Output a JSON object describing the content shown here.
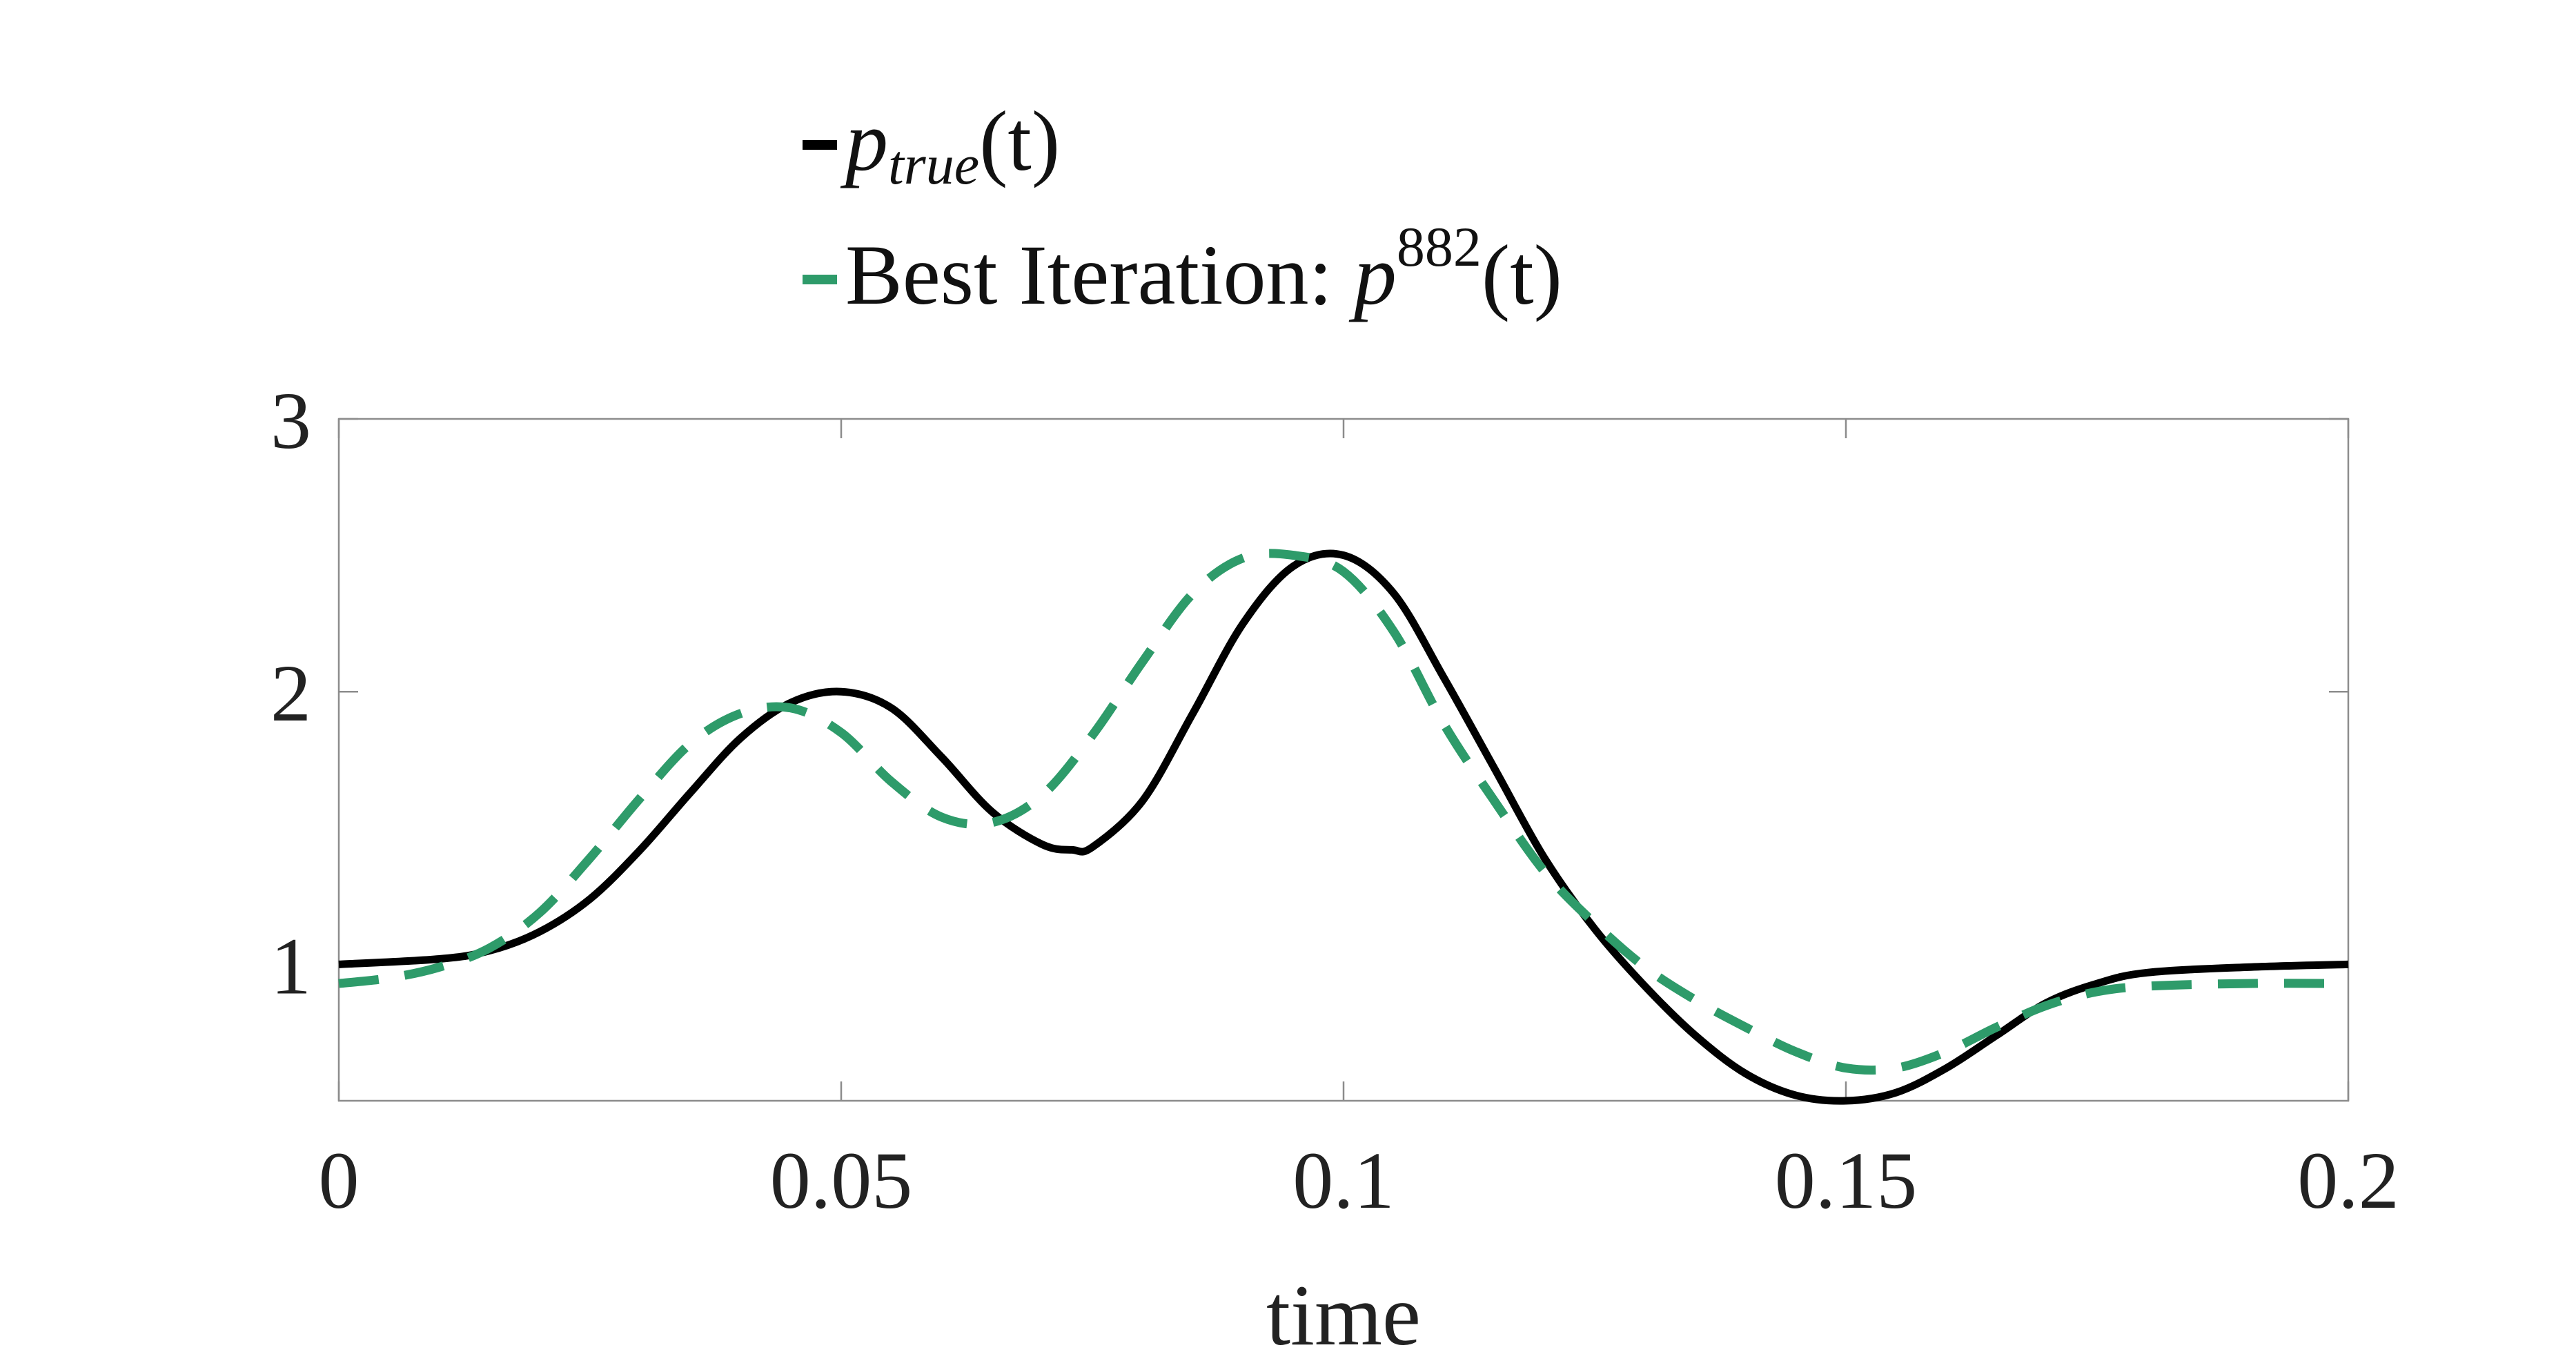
{
  "chart_data": {
    "type": "line",
    "xlabel": "time",
    "ylabel": "",
    "xlim": [
      0,
      0.2
    ],
    "ylim": [
      0.5,
      3
    ],
    "xticks": [
      0,
      0.05,
      0.1,
      0.15,
      0.2
    ],
    "xtick_labels": [
      "0",
      "0.05",
      "0.1",
      "0.15",
      "0.2"
    ],
    "yticks": [
      1,
      2,
      3
    ],
    "ytick_labels": [
      "1",
      "2",
      "3"
    ],
    "grid": false,
    "legend_position": "top-center",
    "legend": {
      "true_prefix": "p",
      "true_sub": "true",
      "true_suffix": "(t)",
      "best_prefix": "Best Iteration: ",
      "best_p": "p",
      "best_sup": "882",
      "best_suffix": "(t)"
    },
    "series": [
      {
        "color": "#000000",
        "dash": "solid",
        "x": [
          0,
          0.01,
          0.015,
          0.02,
          0.025,
          0.03,
          0.035,
          0.04,
          0.045,
          0.05,
          0.055,
          0.06,
          0.065,
          0.07,
          0.073,
          0.075,
          0.08,
          0.085,
          0.09,
          0.095,
          0.1,
          0.105,
          0.11,
          0.115,
          0.12,
          0.125,
          0.13,
          0.135,
          0.14,
          0.145,
          0.15,
          0.155,
          0.16,
          0.165,
          0.17,
          0.175,
          0.18,
          0.19,
          0.2
        ],
        "y": [
          1.0,
          1.02,
          1.05,
          1.12,
          1.24,
          1.42,
          1.63,
          1.83,
          1.96,
          2.0,
          1.94,
          1.76,
          1.56,
          1.44,
          1.42,
          1.43,
          1.6,
          1.92,
          2.25,
          2.46,
          2.5,
          2.36,
          2.05,
          1.72,
          1.39,
          1.13,
          0.92,
          0.74,
          0.6,
          0.52,
          0.5,
          0.53,
          0.62,
          0.74,
          0.86,
          0.93,
          0.97,
          0.99,
          1.0
        ]
      },
      {
        "color": "#2e9b6a",
        "dash": "dashed",
        "x": [
          0,
          0.005,
          0.01,
          0.015,
          0.02,
          0.025,
          0.03,
          0.035,
          0.04,
          0.045,
          0.05,
          0.055,
          0.06,
          0.065,
          0.07,
          0.075,
          0.08,
          0.085,
          0.09,
          0.095,
          0.1,
          0.105,
          0.11,
          0.115,
          0.12,
          0.125,
          0.13,
          0.135,
          0.14,
          0.145,
          0.15,
          0.155,
          0.16,
          0.165,
          0.17,
          0.175,
          0.18,
          0.19,
          0.2
        ],
        "y": [
          0.93,
          0.95,
          0.99,
          1.06,
          1.19,
          1.39,
          1.61,
          1.81,
          1.92,
          1.94,
          1.85,
          1.67,
          1.54,
          1.52,
          1.62,
          1.84,
          2.11,
          2.36,
          2.49,
          2.5,
          2.44,
          2.22,
          1.88,
          1.6,
          1.34,
          1.15,
          0.99,
          0.87,
          0.77,
          0.68,
          0.62,
          0.62,
          0.68,
          0.77,
          0.85,
          0.9,
          0.92,
          0.93,
          0.93
        ]
      }
    ]
  }
}
